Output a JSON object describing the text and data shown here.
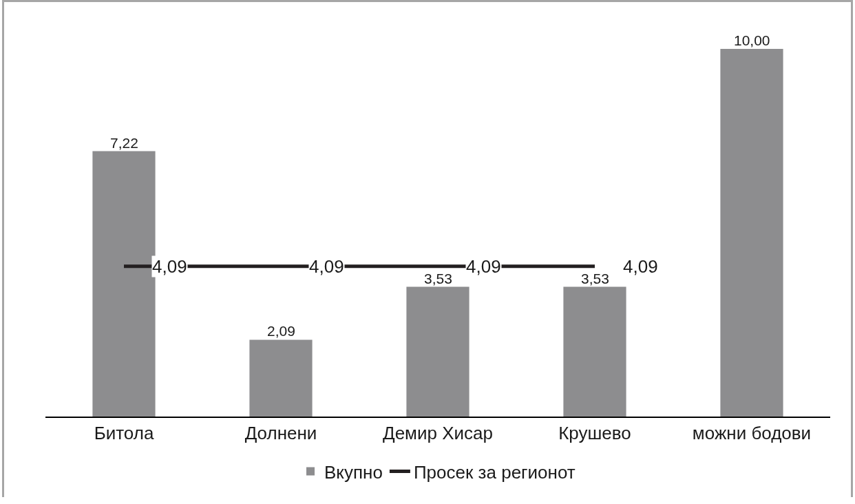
{
  "chart_data": {
    "type": "bar",
    "categories": [
      "Битола",
      "Долнени",
      "Демир Хисар",
      "Крушево",
      "можни бодови"
    ],
    "series": [
      {
        "name": "Вкупно",
        "color": "#8d8d8f",
        "values": [
          7.22,
          2.09,
          3.53,
          3.53,
          10.0
        ],
        "value_labels": [
          "7,22",
          "2,09",
          "3,53",
          "3,53",
          "10,00"
        ]
      },
      {
        "name": "Просек за регионот",
        "type": "line",
        "color": "#231f20",
        "values": [
          4.09,
          4.09,
          4.09,
          4.09,
          null
        ],
        "value_labels": [
          "4,09",
          "4,09",
          "4,09",
          "4,09",
          null
        ]
      }
    ],
    "tick_labels": "x",
    "grid": false,
    "legend": "bottom",
    "marker": "none",
    "line_style": "solid"
  }
}
